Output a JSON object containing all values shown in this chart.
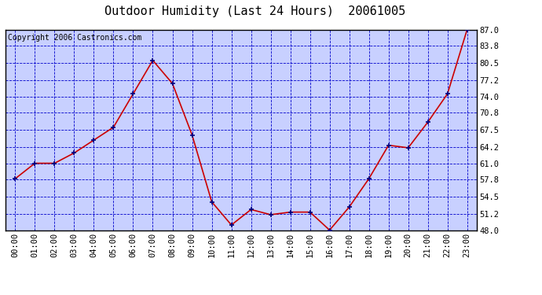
{
  "title": "Outdoor Humidity (Last 24 Hours)  20061005",
  "copyright_text": "Copyright 2006 Castronics.com",
  "x_labels": [
    "00:00",
    "01:00",
    "02:00",
    "03:00",
    "04:00",
    "05:00",
    "06:00",
    "07:00",
    "08:00",
    "09:00",
    "10:00",
    "11:00",
    "12:00",
    "13:00",
    "14:00",
    "15:00",
    "16:00",
    "17:00",
    "18:00",
    "19:00",
    "20:00",
    "21:00",
    "22:00",
    "23:00"
  ],
  "y_values": [
    58.0,
    61.0,
    61.0,
    63.0,
    65.5,
    68.0,
    74.5,
    81.0,
    76.5,
    66.5,
    53.5,
    49.0,
    52.0,
    51.0,
    51.5,
    51.5,
    48.0,
    52.5,
    58.0,
    64.5,
    64.0,
    69.0,
    74.5,
    87.0
  ],
  "line_color": "#cc0000",
  "marker_color": "#000080",
  "fig_bg_color": "#ffffff",
  "plot_bg_color": "#c8d0ff",
  "grid_color": "#0000cc",
  "border_color": "#000000",
  "y_ticks": [
    48.0,
    51.2,
    54.5,
    57.8,
    61.0,
    64.2,
    67.5,
    70.8,
    74.0,
    77.2,
    80.5,
    83.8,
    87.0
  ],
  "ylim": [
    48.0,
    87.0
  ],
  "title_fontsize": 11,
  "copyright_fontsize": 7,
  "tick_fontsize": 7.5
}
